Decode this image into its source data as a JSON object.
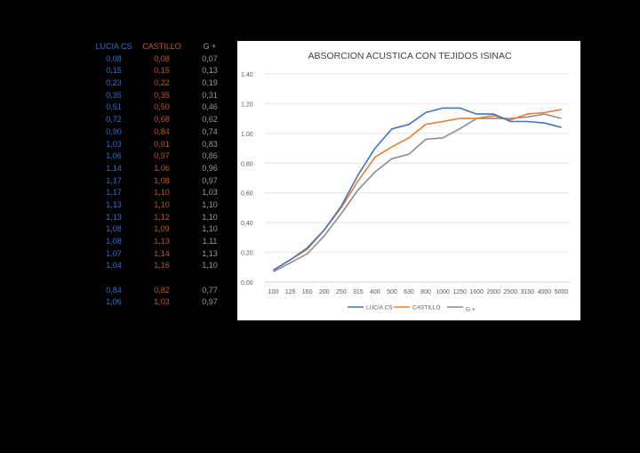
{
  "table": {
    "headers": [
      "LUCIA CS",
      "CASTILLO",
      "G +"
    ],
    "columns": [
      [
        "0,08",
        "0,15",
        "0,23",
        "0,35",
        "0,51",
        "0,72",
        "0,90",
        "1,03",
        "1,06",
        "1,14",
        "1,17",
        "1,17",
        "1,13",
        "1,13",
        "1,08",
        "1,08",
        "1,07",
        "1,04",
        "",
        "0,84",
        "1,06"
      ],
      [
        "0,08",
        "0,15",
        "0,22",
        "0,35",
        "0,50",
        "0,68",
        "0,84",
        "0,91",
        "0,97",
        "1,06",
        "1,08",
        "1,10",
        "1,10",
        "1,12",
        "1,09",
        "1,13",
        "1,14",
        "1,16",
        "",
        "0,82",
        "1,03"
      ],
      [
        "0,07",
        "0,13",
        "0,19",
        "0,31",
        "0,46",
        "0,62",
        "0,74",
        "0,83",
        "0,86",
        "0,96",
        "0,97",
        "1,03",
        "1,10",
        "1,10",
        "1,10",
        "1,11",
        "1,13",
        "1,10",
        "",
        "0,77",
        "0,97"
      ]
    ],
    "colors": [
      "#2f6fd6",
      "#c0561e",
      "#9a9a9a"
    ]
  },
  "chart_data": {
    "type": "line",
    "title": "ABSORCION ACUSTICA CON TEJIDOS ISINAC",
    "categories": [
      "100",
      "125",
      "160",
      "200",
      "250",
      "315",
      "400",
      "500",
      "630",
      "800",
      "1000",
      "1250",
      "1600",
      "2000",
      "2500",
      "3150",
      "4000",
      "5000"
    ],
    "ylim": [
      0,
      1.4
    ],
    "yticks": [
      "0,00",
      "0,20",
      "0,40",
      "0,60",
      "0,80",
      "1,00",
      "1,20",
      "1,40"
    ],
    "grid": true,
    "legend_position": "bottom",
    "series": [
      {
        "name": "LUCIA CS",
        "color": "#4472c4",
        "values": [
          0.08,
          0.15,
          0.23,
          0.35,
          0.51,
          0.72,
          0.9,
          1.03,
          1.06,
          1.14,
          1.17,
          1.17,
          1.13,
          1.13,
          1.08,
          1.08,
          1.07,
          1.04
        ]
      },
      {
        "name": "CASTILLO",
        "color": "#ed7d31",
        "values": [
          0.08,
          0.15,
          0.22,
          0.35,
          0.5,
          0.68,
          0.84,
          0.91,
          0.97,
          1.06,
          1.08,
          1.1,
          1.1,
          1.12,
          1.09,
          1.13,
          1.14,
          1.16
        ]
      },
      {
        "name": "G +",
        "color": "#8c8c8c",
        "values": [
          0.07,
          0.13,
          0.19,
          0.31,
          0.46,
          0.62,
          0.74,
          0.83,
          0.86,
          0.96,
          0.97,
          1.03,
          1.1,
          1.1,
          1.1,
          1.11,
          1.13,
          1.1
        ]
      }
    ]
  }
}
